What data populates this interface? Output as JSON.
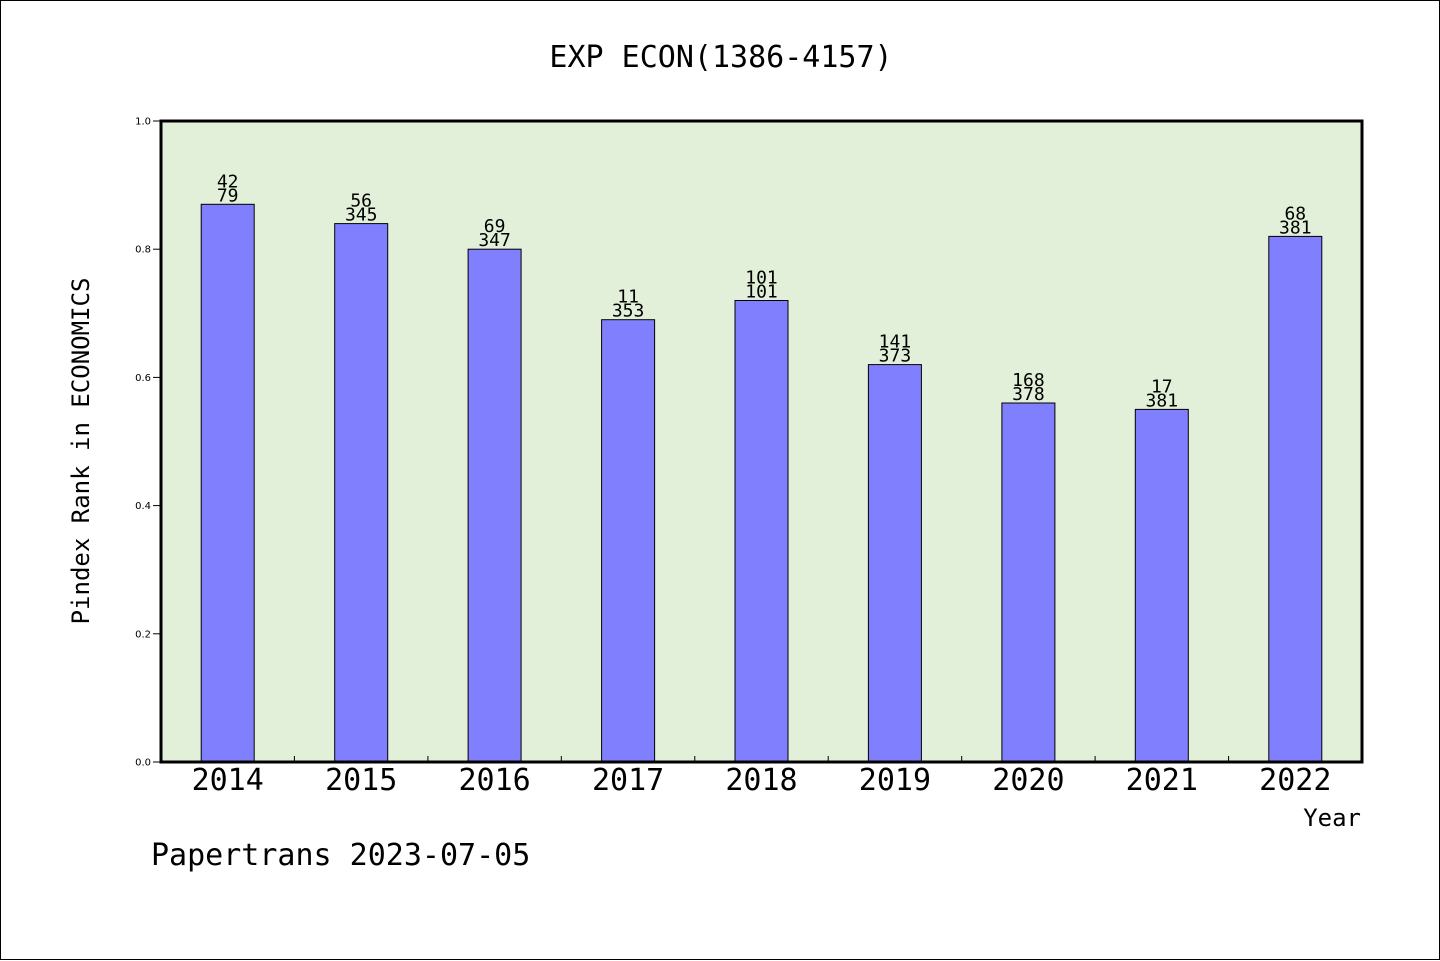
{
  "chart_data": {
    "type": "bar",
    "title": "EXP ECON(1386-4157)",
    "ylabel": "Pindex Rank in ECONOMICS",
    "xlabel": "Year",
    "footer": "Papertrans 2023-07-05",
    "ylim": [
      0,
      1.0
    ],
    "yticks": [
      "0.0",
      "0.2",
      "0.4",
      "0.6",
      "0.8",
      "1.0"
    ],
    "grid": false,
    "plot_bg_color": "#e2efd9",
    "bar_color": "#8080ff",
    "categories": [
      "2014",
      "2015",
      "2016",
      "2017",
      "2018",
      "2019",
      "2020",
      "2021",
      "2022"
    ],
    "values": [
      0.87,
      0.84,
      0.8,
      0.69,
      0.72,
      0.62,
      0.56,
      0.55,
      0.82
    ],
    "labels_top": [
      "42",
      "56",
      "69",
      "11",
      "101",
      "141",
      "168",
      "17",
      "68"
    ],
    "labels_bottom": [
      "79",
      "345",
      "347",
      "353",
      "101",
      "373",
      "378",
      "381",
      "381"
    ]
  }
}
